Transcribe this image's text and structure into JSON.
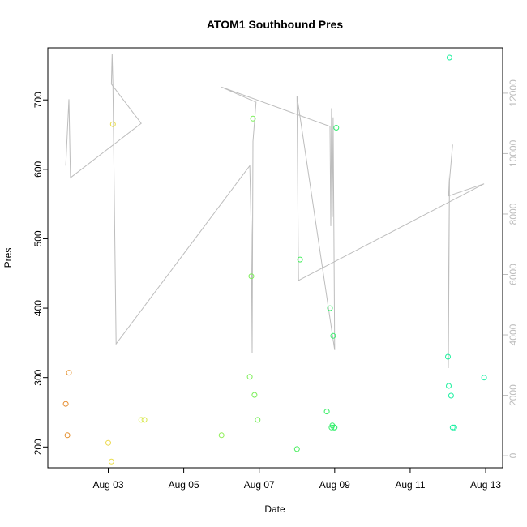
{
  "chart_data": {
    "type": "scatter",
    "title": "ATOM1 Southbound Pres",
    "xlabel": "Date",
    "ylabel": "Pres",
    "x_ticks": [
      "Aug 03",
      "Aug 05",
      "Aug 07",
      "Aug 09",
      "Aug 11",
      "Aug 13"
    ],
    "y_ticks": [
      "200",
      "300",
      "400",
      "500",
      "600",
      "700"
    ],
    "y2_ticks": [
      "0",
      "2000",
      "4000",
      "6000",
      "8000",
      "10000",
      "12000"
    ],
    "xlim_days": [
      1.4,
      13.45
    ],
    "ylim": [
      170,
      775
    ],
    "y2lim": [
      -400,
      13500
    ],
    "grid": false,
    "legend": "none",
    "color_scale": [
      "#e58a2a",
      "#d2e84e",
      "#6eee5a",
      "#18f0a5"
    ],
    "line_color": "#bdbdbd",
    "series": [
      {
        "kind": "points",
        "axis": "left",
        "marker": "open-circle",
        "points": [
          {
            "x": "Aug 01 21:00",
            "y": 262,
            "color": "#e58a2a"
          },
          {
            "x": "Aug 01 22:00",
            "y": 217,
            "color": "#e48e2b"
          },
          {
            "x": "Aug 01 23:00",
            "y": 307,
            "color": "#e4902c"
          },
          {
            "x": "Aug 03 00:00",
            "y": 206,
            "color": "#ecd84a"
          },
          {
            "x": "Aug 03 02:00",
            "y": 179,
            "color": "#e9de49"
          },
          {
            "x": "Aug 03 03:00",
            "y": 665,
            "color": "#e8dc48"
          },
          {
            "x": "Aug 03 21:00",
            "y": 239,
            "color": "#dae84d"
          },
          {
            "x": "Aug 03 23:00",
            "y": 239,
            "color": "#d8e84d"
          },
          {
            "x": "Aug 06 00:00",
            "y": 217,
            "color": "#8eef55"
          },
          {
            "x": "Aug 06 18:00",
            "y": 301,
            "color": "#7cee56"
          },
          {
            "x": "Aug 06 19:00",
            "y": 446,
            "color": "#7aee56"
          },
          {
            "x": "Aug 06 20:00",
            "y": 673,
            "color": "#78ee57"
          },
          {
            "x": "Aug 06 21:00",
            "y": 275,
            "color": "#78ee57"
          },
          {
            "x": "Aug 06 23:00",
            "y": 239,
            "color": "#74ee57"
          },
          {
            "x": "Aug 08 00:00",
            "y": 197,
            "color": "#48ee5d"
          },
          {
            "x": "Aug 08 02:00",
            "y": 470,
            "color": "#46ee5e"
          },
          {
            "x": "Aug 08 19:00",
            "y": 251,
            "color": "#3aef68"
          },
          {
            "x": "Aug 08 21:00",
            "y": 400,
            "color": "#38ef6a"
          },
          {
            "x": "Aug 08 22:00",
            "y": 228,
            "color": "#36ef6b"
          },
          {
            "x": "Aug 08 22:30",
            "y": 231,
            "color": "#36ef6c"
          },
          {
            "x": "Aug 08 23:00",
            "y": 360,
            "color": "#35ef6c"
          },
          {
            "x": "Aug 08 23:30",
            "y": 228,
            "color": "#34ef6d"
          },
          {
            "x": "Aug 09 00:00",
            "y": 228,
            "color": "#33ef6e"
          },
          {
            "x": "Aug 09 01:00",
            "y": 660,
            "color": "#32ef6f"
          },
          {
            "x": "Aug 12 00:00",
            "y": 330,
            "color": "#1cf09c"
          },
          {
            "x": "Aug 12 00:30",
            "y": 288,
            "color": "#1cf09d"
          },
          {
            "x": "Aug 12 01:00",
            "y": 761,
            "color": "#1bf09e"
          },
          {
            "x": "Aug 12 02:00",
            "y": 274,
            "color": "#1bf0a0"
          },
          {
            "x": "Aug 12 03:00",
            "y": 228,
            "color": "#1af0a1"
          },
          {
            "x": "Aug 12 04:00",
            "y": 228,
            "color": "#1af0a2"
          },
          {
            "x": "Aug 12 23:00",
            "y": 300,
            "color": "#18f0a5"
          }
        ]
      },
      {
        "kind": "line",
        "axis": "right",
        "points": [
          {
            "x": "Aug 01 21:00",
            "y": 9600
          },
          {
            "x": "Aug 01 23:00",
            "y": 11800
          },
          {
            "x": "Aug 02 00:00",
            "y": 9200
          },
          {
            "x": "Aug 03 21:00",
            "y": 11000
          },
          {
            "x": "Aug 03 02:00",
            "y": 12300
          },
          {
            "x": "Aug 03 02:30",
            "y": 13300
          },
          {
            "x": "Aug 03 03:00",
            "y": 12200
          },
          {
            "x": "Aug 03 05:00",
            "y": 3700
          },
          {
            "x": "Aug 06 18:00",
            "y": 9600
          },
          {
            "x": "Aug 06 19:00",
            "y": 7300
          },
          {
            "x": "Aug 06 19:30",
            "y": 3400
          },
          {
            "x": "Aug 06 20:00",
            "y": 10400
          },
          {
            "x": "Aug 06 22:00",
            "y": 11700
          },
          {
            "x": "Aug 06 00:00",
            "y": 12200
          },
          {
            "x": "Aug 08 21:00",
            "y": 10900
          },
          {
            "x": "Aug 08 21:30",
            "y": 7600
          },
          {
            "x": "Aug 08 22:00",
            "y": 11500
          },
          {
            "x": "Aug 08 22:30",
            "y": 7900
          },
          {
            "x": "Aug 08 23:00",
            "y": 11200
          },
          {
            "x": "Aug 09 00:00",
            "y": 3500
          },
          {
            "x": "Aug 08 00:00",
            "y": 11900
          },
          {
            "x": "Aug 08 01:00",
            "y": 5800
          },
          {
            "x": "Aug 12 23:00",
            "y": 9000
          },
          {
            "x": "Aug 12 00:30",
            "y": 8600
          },
          {
            "x": "Aug 12 00:00",
            "y": 9300
          },
          {
            "x": "Aug 12 00:15",
            "y": 2900
          },
          {
            "x": "Aug 12 01:00",
            "y": 9100
          },
          {
            "x": "Aug 12 03:00",
            "y": 10300
          }
        ]
      }
    ]
  }
}
